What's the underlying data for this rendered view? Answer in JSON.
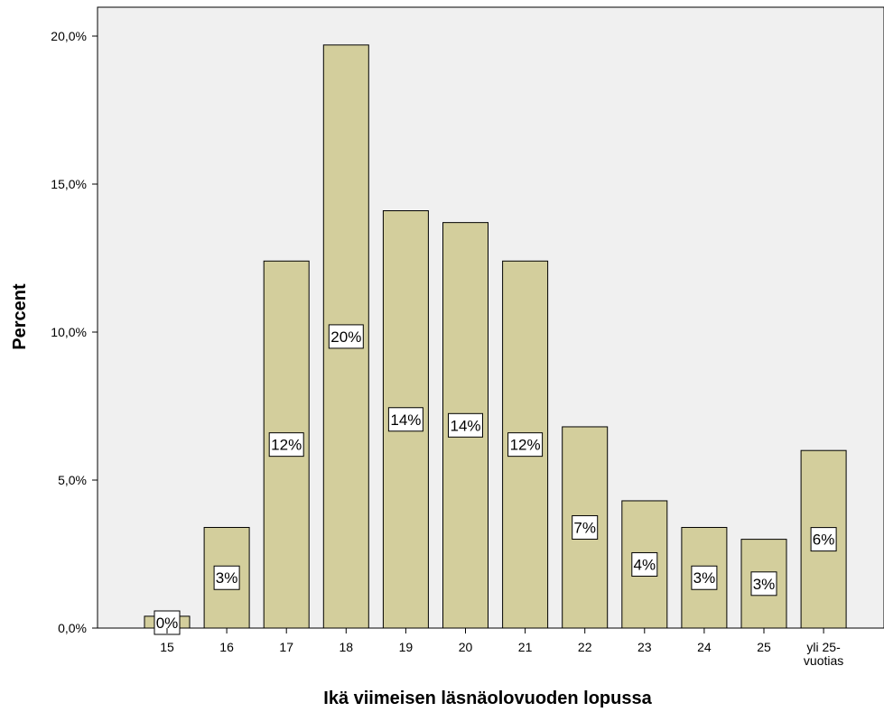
{
  "chart_data": {
    "type": "bar",
    "title": "",
    "xlabel": "Ikä viimeisen läsnäolovuoden lopussa",
    "ylabel": "Percent",
    "categories": [
      "15",
      "16",
      "17",
      "18",
      "19",
      "20",
      "21",
      "22",
      "23",
      "24",
      "25",
      "yli 25-\nvuotias"
    ],
    "values": [
      0.4,
      3.4,
      12.4,
      19.7,
      14.1,
      13.7,
      12.4,
      6.8,
      4.3,
      3.4,
      3.0,
      6.0
    ],
    "data_labels": [
      "0%",
      "3%",
      "12%",
      "20%",
      "14%",
      "14%",
      "12%",
      "7%",
      "4%",
      "3%",
      "3%",
      "6%"
    ],
    "ylim": [
      0,
      20
    ],
    "yticks": [
      0,
      5,
      10,
      15,
      20
    ],
    "ytick_labels": [
      "0,0%",
      "5,0%",
      "10,0%",
      "15,0%",
      "20,0%"
    ],
    "grid": false,
    "legend": "none",
    "colors": {
      "bar_fill": "#d3ce9c",
      "bar_stroke": "#000000",
      "plot_background": "#f0f0f0",
      "label_box": "#ffffff"
    }
  }
}
